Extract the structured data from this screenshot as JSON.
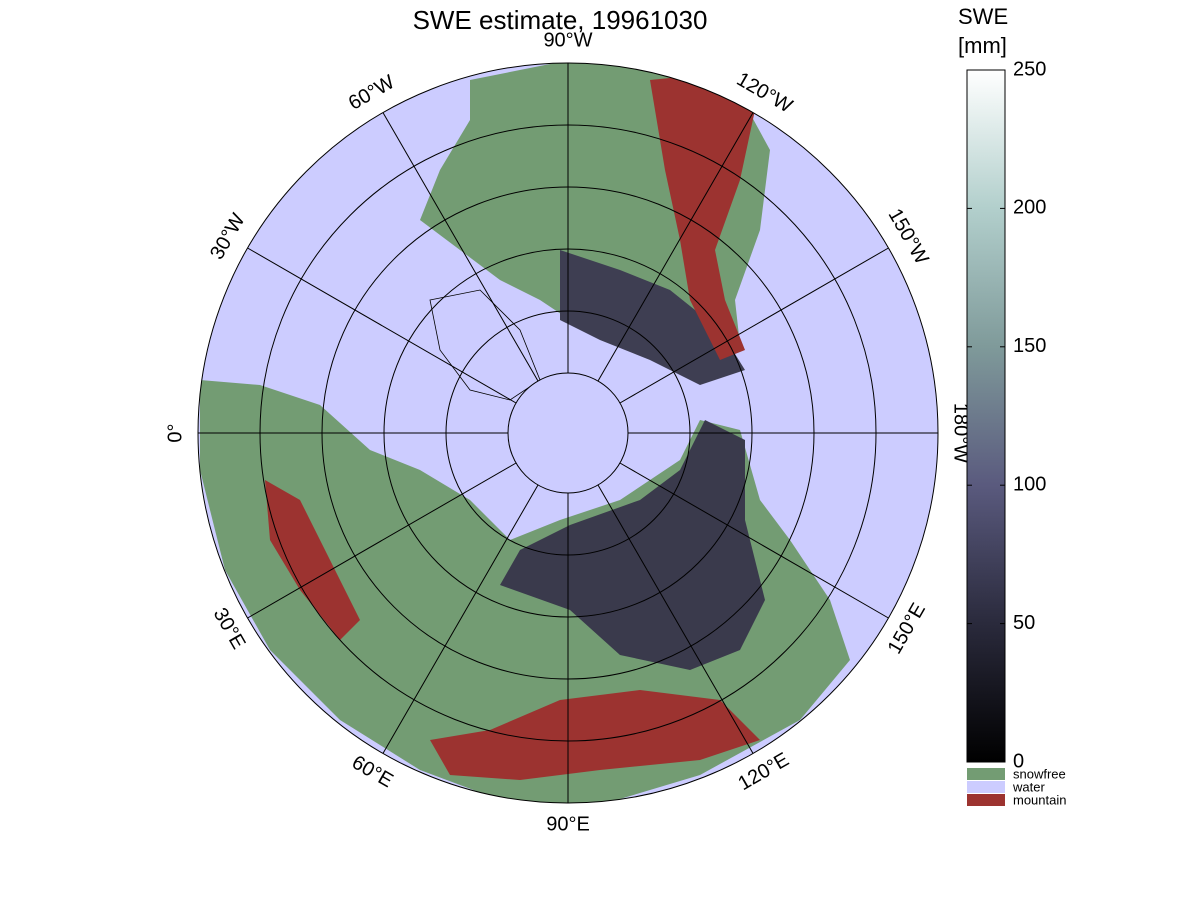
{
  "map": {
    "title": "SWE estimate, 19961030",
    "meridians": [
      {
        "value": -90,
        "label": "90°W"
      },
      {
        "value": -120,
        "label": "120°W"
      },
      {
        "value": -150,
        "label": "150°W"
      },
      {
        "value": -180,
        "label": "180°W"
      },
      {
        "value": 150,
        "label": "150°E"
      },
      {
        "value": 120,
        "label": "120°E"
      },
      {
        "value": 90,
        "label": "90°E"
      },
      {
        "value": 60,
        "label": "60°E"
      },
      {
        "value": 30,
        "label": "30°E"
      },
      {
        "value": 0,
        "label": "0°"
      },
      {
        "value": -30,
        "label": "30°W"
      },
      {
        "value": -60,
        "label": "60°W"
      }
    ],
    "colorbar": {
      "title": [
        "SWE",
        "[mm]"
      ],
      "lim": [
        0,
        250
      ],
      "ticks": [
        0,
        50,
        100,
        150,
        200,
        250
      ]
    },
    "legend": [
      {
        "label": "snowfree",
        "color": "#739c73"
      },
      {
        "label": "water",
        "color": "#ccccff"
      },
      {
        "label": "mountain",
        "color": "#9c3330"
      }
    ]
  }
}
